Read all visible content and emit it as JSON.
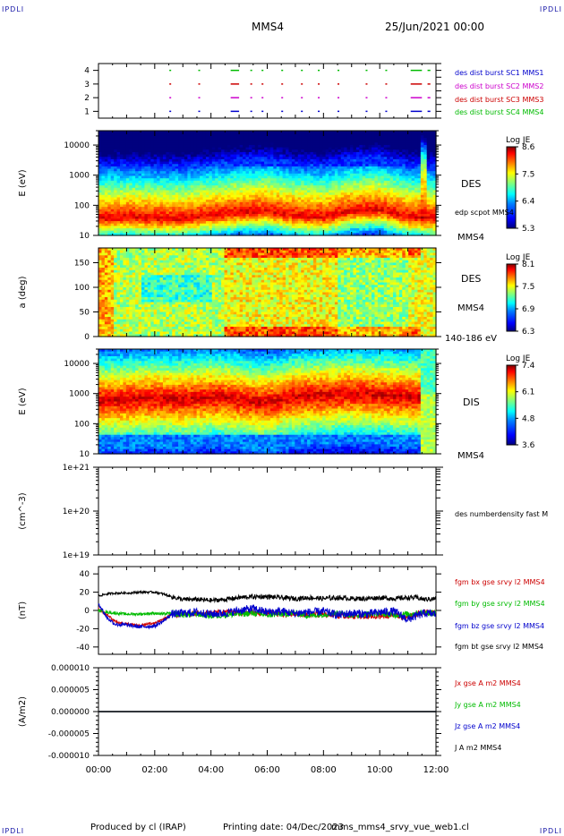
{
  "corners": {
    "tl": "IPDLI",
    "tr": "IPDLI",
    "bl": "IPDLI",
    "br": "IPDLI"
  },
  "header": {
    "spacecraft": "MMS4",
    "datetime": "25/Jun/2021 00:00"
  },
  "footer": {
    "produced": "Produced by cl (IRAP)",
    "printing": "Printing date: 04/Dec/2023",
    "file": "mms_mms4_srvy_vue_web1.cl"
  },
  "colors": {
    "blue": "#0000cc",
    "magenta": "#cc00cc",
    "red": "#cc0000",
    "green": "#00bb00",
    "black": "#000000",
    "cmap": [
      "#00007f",
      "#0000ff",
      "#007fff",
      "#00ffff",
      "#7fff7f",
      "#ffff00",
      "#ff7f00",
      "#ff0000",
      "#7f0000"
    ]
  },
  "chart_data": [
    {
      "type": "scatter",
      "panel": "burst-availability",
      "xticks": [
        "00:00",
        "02:00",
        "04:00",
        "06:00",
        "08:00",
        "10:00",
        "12:00"
      ],
      "xlim": [
        0,
        12
      ],
      "ylim": [
        0.5,
        4.5
      ],
      "yticks": [
        "1",
        "2",
        "3",
        "4"
      ],
      "series": [
        {
          "name": "des dist burst SC1 MMS1",
          "level": 1,
          "segments": [
            [
              2.52,
              2.56
            ],
            [
              3.55,
              3.58
            ],
            [
              4.7,
              5.0
            ],
            [
              5.4,
              5.46
            ],
            [
              5.8,
              5.85
            ],
            [
              6.5,
              6.56
            ],
            [
              7.2,
              7.25
            ],
            [
              7.8,
              7.85
            ],
            [
              8.5,
              8.56
            ],
            [
              9.5,
              9.55
            ],
            [
              10.2,
              10.25
            ],
            [
              11.1,
              11.5
            ],
            [
              11.7,
              11.8
            ]
          ]
        },
        {
          "name": "des dist burst SC2 MMS2",
          "level": 2,
          "segments": [
            [
              2.52,
              2.56
            ],
            [
              3.55,
              3.58
            ],
            [
              4.7,
              5.0
            ],
            [
              5.4,
              5.46
            ],
            [
              5.8,
              5.85
            ],
            [
              6.5,
              6.56
            ],
            [
              7.2,
              7.25
            ],
            [
              7.8,
              7.85
            ],
            [
              8.5,
              8.56
            ],
            [
              9.5,
              9.55
            ],
            [
              10.2,
              10.25
            ],
            [
              11.1,
              11.5
            ],
            [
              11.7,
              11.8
            ]
          ]
        },
        {
          "name": "des dist burst SC3 MMS3",
          "level": 3,
          "segments": [
            [
              2.52,
              2.56
            ],
            [
              3.55,
              3.58
            ],
            [
              4.7,
              5.0
            ],
            [
              5.4,
              5.46
            ],
            [
              5.8,
              5.85
            ],
            [
              6.5,
              6.56
            ],
            [
              7.2,
              7.25
            ],
            [
              7.8,
              7.85
            ],
            [
              8.5,
              8.56
            ],
            [
              9.5,
              9.55
            ],
            [
              10.2,
              10.25
            ],
            [
              11.1,
              11.5
            ],
            [
              11.7,
              11.8
            ]
          ]
        },
        {
          "name": "des dist burst SC4 MMS4",
          "level": 4,
          "segments": [
            [
              2.52,
              2.56
            ],
            [
              3.55,
              3.58
            ],
            [
              4.7,
              5.0
            ],
            [
              5.4,
              5.46
            ],
            [
              5.8,
              5.85
            ],
            [
              6.5,
              6.56
            ],
            [
              7.2,
              7.25
            ],
            [
              7.8,
              7.85
            ],
            [
              8.5,
              8.56
            ],
            [
              9.5,
              9.55
            ],
            [
              10.2,
              10.25
            ],
            [
              11.1,
              11.5
            ],
            [
              11.7,
              11.8
            ]
          ]
        }
      ]
    },
    {
      "type": "heatmap",
      "panel": "des-energy-spectrogram",
      "ylabel": "E (eV)",
      "yscale": "log",
      "ylim": [
        10,
        30000
      ],
      "yticks": [
        "10",
        "100",
        "1000",
        "10000"
      ],
      "label": "DES",
      "overlay_label": "edp scpot MMS4",
      "side_label": "MMS4",
      "colorbar": {
        "title": "Log JE",
        "ticks": [
          "8.6",
          "7.5",
          "6.4",
          "5.3"
        ],
        "min": 5.3,
        "max": 8.6
      },
      "peak_log_energy": [
        1.55,
        1.6,
        1.55,
        1.55,
        1.65,
        1.75,
        1.8,
        1.65,
        1.6,
        1.8,
        1.85,
        1.6,
        1.55
      ],
      "times": [
        0,
        1,
        2,
        3,
        4,
        5,
        6,
        7,
        8,
        9,
        10,
        11,
        12
      ]
    },
    {
      "type": "heatmap",
      "panel": "des-pitch-angle",
      "ylabel": "a (deg)",
      "ylim": [
        0,
        180
      ],
      "yticks": [
        "0",
        "50",
        "100",
        "150"
      ],
      "label": "DES",
      "side_label": "MMS4",
      "energy_range": "140-186 eV",
      "colorbar": {
        "title": "Log JE",
        "ticks": [
          "8.1",
          "7.5",
          "6.9",
          "6.3"
        ],
        "min": 6.3,
        "max": 8.1
      }
    },
    {
      "type": "heatmap",
      "panel": "dis-energy-spectrogram",
      "ylabel": "E (eV)",
      "yscale": "log",
      "ylim": [
        10,
        30000
      ],
      "yticks": [
        "10",
        "100",
        "1000",
        "10000"
      ],
      "label": "DIS",
      "side_label": "MMS4",
      "colorbar": {
        "title": "Log JE",
        "ticks": [
          "7.4",
          "6.1",
          "4.8",
          "3.6"
        ],
        "min": 3.6,
        "max": 7.4
      },
      "peak_log_energy": [
        2.75,
        2.8,
        2.85,
        2.8,
        2.9,
        2.8,
        2.7,
        2.9,
        2.95,
        3.0,
        2.95,
        2.9,
        2.85
      ],
      "times": [
        0,
        1,
        2,
        3,
        4,
        5,
        6,
        7,
        8,
        9,
        10,
        11,
        12
      ]
    },
    {
      "type": "line",
      "panel": "electron-density",
      "ylabel": "(cm^-3)",
      "yscale": "log",
      "ylim": [
        1e+19,
        1e+21
      ],
      "yticks": [
        "1e+19",
        "1e+20",
        "1e+21"
      ],
      "series": [
        {
          "name": "des numberdensity fast M",
          "values": []
        }
      ]
    },
    {
      "type": "line",
      "panel": "magnetic-field",
      "ylabel": "(nT)",
      "ylim": [
        -48,
        48
      ],
      "yticks": [
        "40",
        "20",
        "0",
        "-20",
        "-40"
      ],
      "x": [
        0,
        0.3,
        0.6,
        1,
        1.5,
        2,
        2.3,
        2.6,
        3,
        3.5,
        4,
        4.5,
        5,
        5.5,
        6,
        6.5,
        7,
        7.5,
        8,
        8.5,
        9,
        9.5,
        10,
        10.5,
        11,
        11.3,
        11.6,
        12
      ],
      "series": [
        {
          "name": "fgm bx gse srvy l2 MMS4",
          "color": "#cc0000",
          "values": [
            2,
            -5,
            -12,
            -15,
            -16,
            -14,
            -10,
            -5,
            -4,
            -3,
            -3,
            -2,
            -2,
            -3,
            -3,
            -4,
            -3,
            -5,
            -4,
            -6,
            -6,
            -7,
            -6,
            -5,
            -8,
            -4,
            -2,
            -3
          ]
        },
        {
          "name": "fgm by gse srvy l2 MMS4",
          "color": "#00bb00",
          "values": [
            0,
            -2,
            -3,
            -4,
            -4,
            -3,
            -4,
            -3,
            -5,
            -4,
            -6,
            -5,
            -4,
            -3,
            -5,
            -4,
            -3,
            -6,
            -4,
            -3,
            -5,
            -4,
            -3,
            -5,
            -4,
            -3,
            -2,
            -3
          ]
        },
        {
          "name": "fgm bz gse srvy l2 MMS4",
          "color": "#0000cc",
          "values": [
            8,
            -8,
            -15,
            -16,
            -18,
            -17,
            -12,
            -4,
            -3,
            -2,
            -4,
            -3,
            0,
            2,
            -2,
            -1,
            -3,
            -2,
            -1,
            -5,
            -3,
            -4,
            -2,
            -1,
            -10,
            -6,
            -3,
            -4
          ]
        },
        {
          "name": "fgm bt gse srvy l2 MMS4",
          "color": "#000000",
          "values": [
            16,
            18,
            19,
            19,
            20,
            20,
            18,
            15,
            12,
            12,
            11,
            12,
            14,
            15,
            15,
            14,
            13,
            14,
            13,
            14,
            13,
            13,
            14,
            13,
            14,
            14,
            12,
            13
          ]
        }
      ]
    },
    {
      "type": "line",
      "panel": "current-density",
      "ylabel": "(A/m2)",
      "ylim": [
        -1e-05,
        1e-05
      ],
      "yticks": [
        "0.000010",
        "0.000005",
        "0.000000",
        "-0.000005",
        "-0.000010"
      ],
      "series": [
        {
          "name": "Jx gse A m2 MMS4",
          "color": "#cc0000",
          "values": [
            0,
            0
          ]
        },
        {
          "name": "Jy gse A m2 MMS4",
          "color": "#00bb00",
          "values": [
            0,
            0
          ]
        },
        {
          "name": "Jz gse A m2 MMS4",
          "color": "#0000cc",
          "values": [
            0,
            0
          ]
        },
        {
          "name": "J A m2 MMS4",
          "color": "#000000",
          "values": [
            0,
            0
          ]
        }
      ]
    }
  ]
}
